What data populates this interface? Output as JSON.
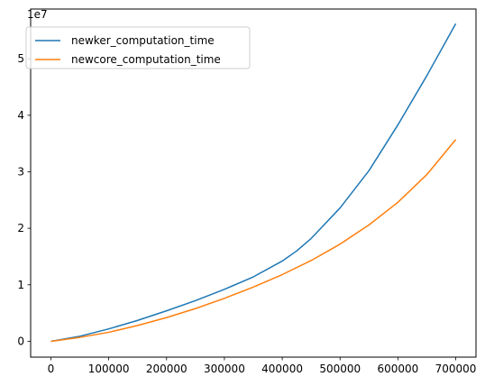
{
  "chart_data": {
    "type": "line",
    "title": "",
    "xlabel": "",
    "ylabel": "",
    "y_offset_label": "1e7",
    "xlim": [
      -35000,
      735000
    ],
    "ylim": [
      -0.28,
      5.88
    ],
    "x_ticks": [
      0,
      100000,
      200000,
      300000,
      400000,
      500000,
      600000,
      700000
    ],
    "x_tick_labels": [
      "0",
      "100000",
      "200000",
      "300000",
      "400000",
      "500000",
      "600000",
      "700000"
    ],
    "y_ticks": [
      0,
      1,
      2,
      3,
      4,
      5
    ],
    "y_tick_labels": [
      "0",
      "1",
      "2",
      "3",
      "4",
      "5"
    ],
    "grid": false,
    "legend_position": "top-left",
    "series": [
      {
        "name": "newker_computation_time",
        "color": "#1f77b4",
        "x": [
          0,
          50000,
          100000,
          150000,
          200000,
          250000,
          300000,
          350000,
          400000,
          425000,
          450000,
          500000,
          550000,
          600000,
          650000,
          700000
        ],
        "y": [
          0.0,
          0.09,
          0.22,
          0.37,
          0.54,
          0.72,
          0.92,
          1.14,
          1.42,
          1.6,
          1.82,
          2.36,
          3.02,
          3.83,
          4.7,
          5.62
        ]
      },
      {
        "name": "newcore_computation_time",
        "color": "#ff7f0e",
        "x": [
          0,
          50000,
          100000,
          150000,
          200000,
          250000,
          300000,
          350000,
          400000,
          450000,
          500000,
          550000,
          600000,
          650000,
          700000
        ],
        "y": [
          0.0,
          0.07,
          0.16,
          0.28,
          0.42,
          0.58,
          0.76,
          0.96,
          1.18,
          1.43,
          1.72,
          2.06,
          2.46,
          2.95,
          3.57
        ]
      }
    ]
  }
}
